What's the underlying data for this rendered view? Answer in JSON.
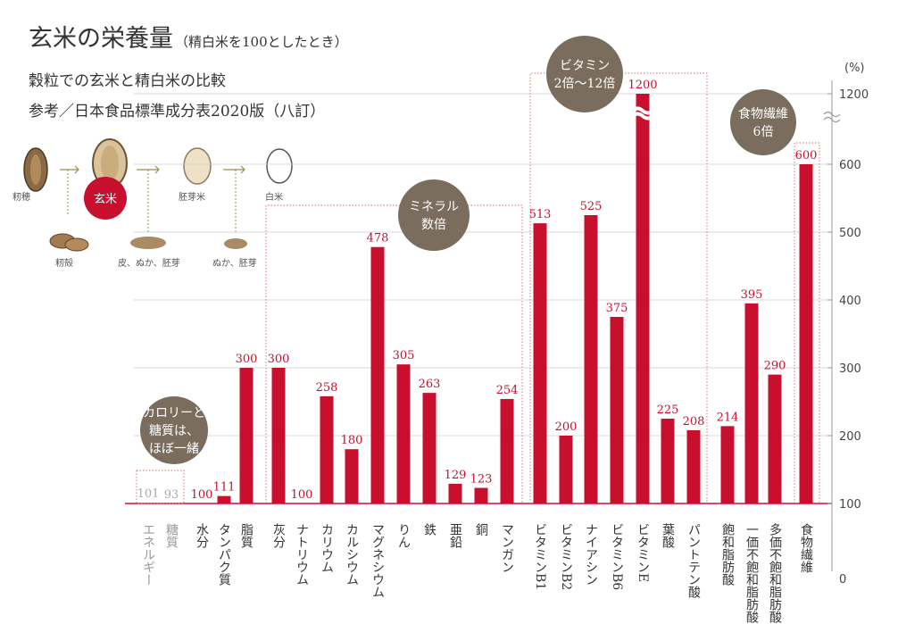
{
  "header": {
    "title": "玄米の栄養量",
    "title_note": "（精白米を100としたとき）",
    "line2": "穀粒での玄米と精白米の比較",
    "line3": "参考／日本食品標準成分表2020版（八訂）"
  },
  "diagram": {
    "labels": [
      "籾穂",
      "玄米",
      "胚芽米",
      "白米",
      "籾殻",
      "皮、ぬか、胚芽",
      "ぬか、胚芽"
    ]
  },
  "badges": [
    {
      "id": "calorie",
      "lines": [
        "カロリーと",
        "糖質は、",
        "ほぼ一緒"
      ]
    },
    {
      "id": "mineral",
      "lines": [
        "ミネラル",
        "数倍"
      ]
    },
    {
      "id": "vitamin",
      "lines": [
        "ビタミン",
        "2倍〜12倍"
      ]
    },
    {
      "id": "fiber",
      "lines": [
        "食物繊維",
        "6倍"
      ]
    }
  ],
  "colors": {
    "bar": "#c8102e",
    "muted": "#aaaaaa",
    "badge": "#7a6d5e",
    "accent_circle": "#c8102e",
    "grid": "#cccccc"
  },
  "chart_data": {
    "type": "bar",
    "ylabel": "(%)",
    "yticks": [
      0,
      100,
      200,
      300,
      400,
      500,
      600,
      1200
    ],
    "axis_break": "between 600 and 1200",
    "baseline": 100,
    "categories": [
      "エネルギー",
      "糖質",
      "水分",
      "タンパク質",
      "脂質",
      "灰分",
      "ナトリウム",
      "カリウム",
      "カルシウム",
      "マグネシウム",
      "りん",
      "鉄",
      "亜鉛",
      "銅",
      "マンガン",
      "ビタミンB1",
      "ビタミンB2",
      "ナイアシン",
      "ビタミンB6",
      "ビタミンE",
      "葉酸",
      "パントテン酸",
      "飽和脂肪酸",
      "一価不飽和脂肪酸",
      "多価不飽和脂肪酸",
      "食物繊維"
    ],
    "values": [
      101,
      93,
      100,
      111,
      300,
      300,
      100,
      258,
      180,
      478,
      305,
      263,
      129,
      123,
      254,
      513,
      200,
      525,
      375,
      1200,
      225,
      208,
      214,
      395,
      290,
      600
    ],
    "muted": [
      true,
      true,
      false,
      false,
      false,
      false,
      false,
      false,
      false,
      false,
      false,
      false,
      false,
      false,
      false,
      false,
      false,
      false,
      false,
      false,
      false,
      false,
      false,
      false,
      false,
      false
    ]
  }
}
